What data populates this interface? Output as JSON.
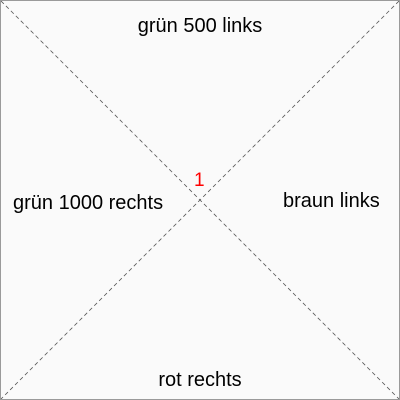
{
  "labels": {
    "top": "grün 500 links",
    "left": "grün 1000 rechts",
    "right": "braun links",
    "bottom": "rot rechts"
  },
  "center_marker": "1",
  "colors": {
    "background": "#fafafa",
    "border": "#9a9a9a",
    "diagonal": "#555555",
    "marker": "#ff0000",
    "text": "#000000"
  }
}
